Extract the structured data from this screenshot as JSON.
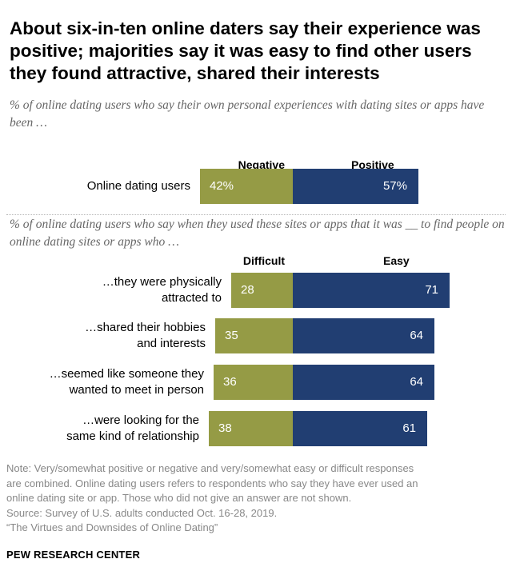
{
  "title": "About six-in-ten online daters say their experience was positive; majorities say it was easy to find other users they found attractive, shared their interests",
  "subtitle_1": "% of online dating users who say their own personal experiences with dating sites or apps have been …",
  "subtitle_2": "% of online dating users who say when they used these sites or apps that it was __ to find people on online dating sites or apps who …",
  "colors": {
    "negative": "#959b45",
    "positive": "#213e72"
  },
  "chart_data": [
    {
      "type": "bar",
      "orientation": "horizontal-diverging",
      "series_labels": [
        "Negative",
        "Positive"
      ],
      "categories": [
        "Online dating users"
      ],
      "negative": [
        42
      ],
      "positive": [
        57
      ],
      "value_labels": {
        "negative": [
          "42%"
        ],
        "positive": [
          "57%"
        ]
      }
    },
    {
      "type": "bar",
      "orientation": "horizontal-diverging",
      "series_labels": [
        "Difficult",
        "Easy"
      ],
      "categories": [
        [
          "…they were physically",
          "attracted to"
        ],
        [
          "…shared their hobbies",
          "and interests"
        ],
        [
          "…seemed like someone they",
          "wanted to meet in person"
        ],
        [
          "…were looking for the",
          "same kind of relationship"
        ]
      ],
      "negative": [
        28,
        35,
        36,
        38
      ],
      "positive": [
        71,
        64,
        64,
        61
      ],
      "value_labels": {
        "negative": [
          "28",
          "35",
          "36",
          "38"
        ],
        "positive": [
          "71",
          "64",
          "64",
          "61"
        ]
      }
    }
  ],
  "notes": [
    "Note: Very/somewhat positive or negative and very/somewhat easy or difficult responses",
    "are combined. Online dating users refers to respondents who say they have ever used an",
    "online dating site or app. Those who did not give an answer are not shown.",
    "Source: Survey of U.S. adults conducted Oct. 16-28, 2019.",
    "“The Virtues and Downsides of Online Dating”"
  ],
  "brand": "PEW RESEARCH CENTER"
}
